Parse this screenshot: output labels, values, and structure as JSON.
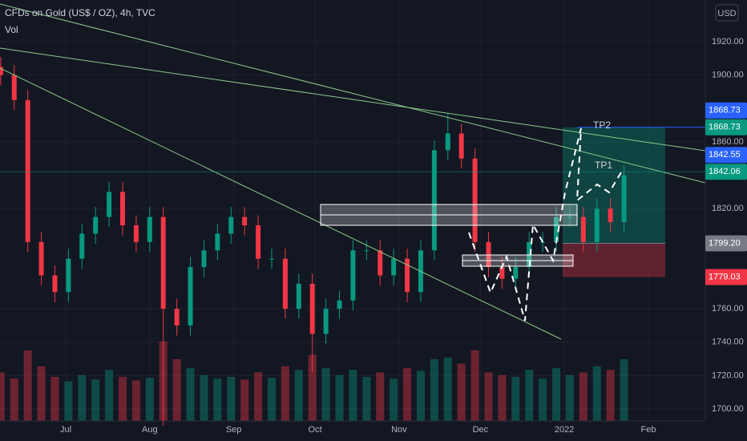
{
  "chart_data": {
    "type": "candlestick",
    "title": "CFDs on Gold (US$ / OZ), 4h, TVC",
    "indicator": "Vol",
    "currency": "USD",
    "x": [
      6,
      11,
      16,
      21,
      26,
      31,
      36,
      41,
      46,
      51,
      56,
      61,
      66,
      71,
      76,
      81,
      86,
      91,
      96,
      101,
      106,
      111,
      116,
      121,
      126,
      131,
      136,
      141,
      146,
      151,
      156,
      161,
      166,
      171,
      176,
      181,
      186,
      191,
      196,
      201,
      206,
      211,
      216,
      221,
      226,
      231,
      236
    ],
    "open": [
      1905,
      1900,
      1885,
      1800,
      1780,
      1770,
      1790,
      1805,
      1815,
      1830,
      1810,
      1800,
      1815,
      1760,
      1750,
      1785,
      1795,
      1805,
      1815,
      1810,
      1790,
      1790,
      1760,
      1775,
      1745,
      1760,
      1765,
      1795,
      1795,
      1780,
      1790,
      1770,
      1795,
      1855,
      1865,
      1850,
      1800,
      1785,
      1778,
      1785,
      1800,
      1800,
      1815,
      1815,
      1800,
      1820,
      1812
    ],
    "high": [
      1911,
      1906,
      1891,
      1806,
      1786,
      1796,
      1811,
      1821,
      1836,
      1836,
      1816,
      1821,
      1821,
      1766,
      1791,
      1801,
      1811,
      1821,
      1821,
      1816,
      1796,
      1796,
      1781,
      1781,
      1766,
      1771,
      1801,
      1801,
      1801,
      1796,
      1796,
      1801,
      1861,
      1877,
      1871,
      1856,
      1806,
      1791,
      1791,
      1806,
      1806,
      1821,
      1821,
      1821,
      1826,
      1826,
      1846
    ],
    "low": [
      1894,
      1879,
      1794,
      1774,
      1764,
      1764,
      1784,
      1799,
      1809,
      1804,
      1794,
      1794,
      1690,
      1744,
      1744,
      1779,
      1789,
      1799,
      1804,
      1784,
      1784,
      1754,
      1754,
      1722,
      1739,
      1754,
      1759,
      1789,
      1774,
      1774,
      1764,
      1764,
      1789,
      1849,
      1844,
      1794,
      1779,
      1772,
      1772,
      1779,
      1794,
      1794,
      1809,
      1794,
      1794,
      1806,
      1806
    ],
    "close": [
      1900,
      1885,
      1800,
      1780,
      1770,
      1790,
      1805,
      1815,
      1830,
      1810,
      1800,
      1815,
      1760,
      1750,
      1785,
      1795,
      1805,
      1815,
      1810,
      1790,
      1790,
      1760,
      1775,
      1745,
      1760,
      1765,
      1795,
      1795,
      1780,
      1790,
      1770,
      1795,
      1855,
      1865,
      1850,
      1800,
      1785,
      1778,
      1785,
      1800,
      1800,
      1815,
      1815,
      1800,
      1820,
      1812,
      1840
    ],
    "volume": [
      55,
      48,
      80,
      62,
      50,
      45,
      52,
      47,
      58,
      50,
      46,
      49,
      90,
      70,
      60,
      52,
      48,
      50,
      47,
      55,
      49,
      62,
      58,
      75,
      60,
      52,
      58,
      50,
      55,
      48,
      60,
      57,
      70,
      72,
      65,
      80,
      55,
      52,
      50,
      58,
      48,
      60,
      52,
      55,
      62,
      58,
      70
    ],
    "up_color": "#089981",
    "down_color": "#f23645",
    "xlim": [
      5.75,
      266
    ],
    "ylim": [
      1692.8,
      1945
    ],
    "xticks": [
      {
        "value": 30,
        "label": "Jul"
      },
      {
        "value": 61,
        "label": "Aug"
      },
      {
        "value": 92,
        "label": "Sep"
      },
      {
        "value": 122,
        "label": "Oct"
      },
      {
        "value": 153,
        "label": "Nov"
      },
      {
        "value": 183,
        "label": "Dec"
      },
      {
        "value": 214,
        "label": "2022"
      },
      {
        "value": 245,
        "label": "Feb"
      }
    ],
    "yticks": [
      {
        "value": 1700,
        "label": "1700.00"
      },
      {
        "value": 1720,
        "label": "1720.00"
      },
      {
        "value": 1740,
        "label": "1740.00"
      },
      {
        "value": 1760,
        "label": "1760.00"
      },
      {
        "value": 1820,
        "label": "1820.00"
      },
      {
        "value": 1860,
        "label": "1860.00"
      },
      {
        "value": 1900,
        "label": "1900.00"
      },
      {
        "value": 1920,
        "label": "1920.00"
      }
    ],
    "price_labels": [
      {
        "value": 1868.73,
        "label": "1868.73",
        "color": "#2962ff"
      },
      {
        "value": 1868.73,
        "label": "1868.73",
        "color": "#089981"
      },
      {
        "value": 1842.55,
        "label": "1842.55",
        "color": "#2962ff"
      },
      {
        "value": 1842.06,
        "label": "1842.06",
        "color": "#089981"
      },
      {
        "value": 1799.2,
        "label": "1799.20",
        "color": "#787b86"
      },
      {
        "value": 1779.03,
        "label": "1779.03",
        "color": "#f23645"
      }
    ],
    "position": {
      "target": 1868.73,
      "entry": 1799.2,
      "stop": 1779.03
    },
    "annotations": [
      "TP2",
      "TP1"
    ]
  }
}
